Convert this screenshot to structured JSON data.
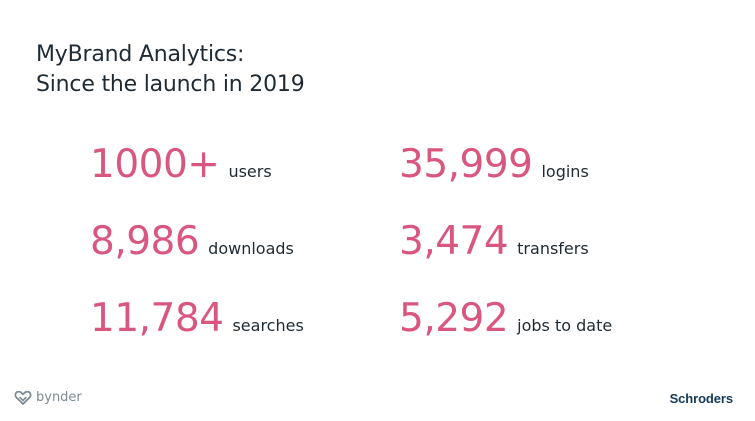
{
  "slide": {
    "title_line1": "MyBrand Analytics:",
    "title_line2": "Since the launch in 2019"
  },
  "stats": [
    {
      "value": "1000+",
      "label": "users"
    },
    {
      "value": "35,999",
      "label": "logins"
    },
    {
      "value": "8,986",
      "label": "downloads"
    },
    {
      "value": "3,474",
      "label": "transfers"
    },
    {
      "value": "11,784",
      "label": "searches"
    },
    {
      "value": "5,292",
      "label": "jobs to date"
    }
  ],
  "footer": {
    "left_logo_text": "bynder",
    "right_logo_text": "Schroders"
  },
  "colors": {
    "accent": "#d9577f",
    "text": "#1f2a33",
    "bynder_gray": "#7d8a93",
    "schroders_navy": "#123a5a"
  },
  "icons": {
    "bynder_logo": "bynder-logo-icon"
  }
}
